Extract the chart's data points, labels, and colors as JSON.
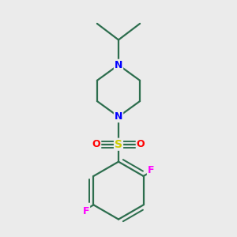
{
  "background_color": "#ebebeb",
  "bond_color": "#2d6e4e",
  "N_color": "#0000ff",
  "S_color": "#cccc00",
  "O_color": "#ff0000",
  "F_color": "#ff00ff",
  "line_width": 1.6,
  "figsize": [
    3.0,
    3.0
  ],
  "dpi": 100,
  "xlim": [
    -1.8,
    1.8
  ],
  "ylim": [
    -3.5,
    2.8
  ]
}
